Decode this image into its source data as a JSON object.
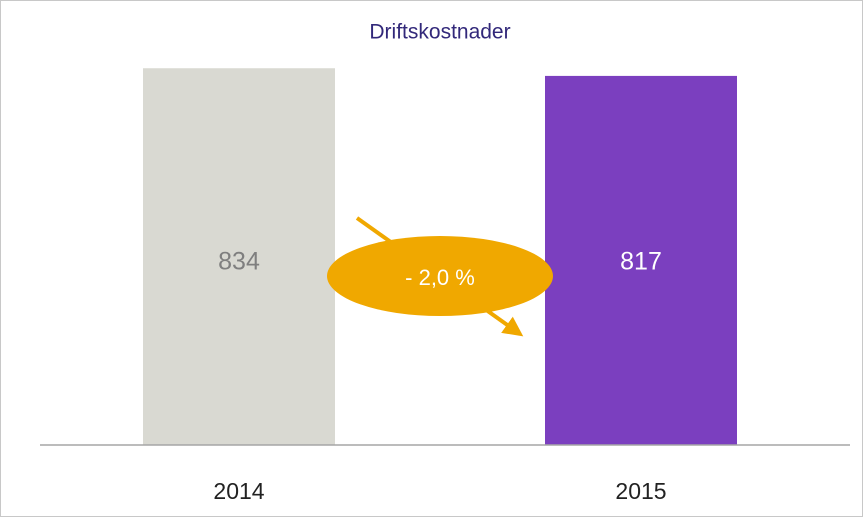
{
  "chart_data": {
    "type": "bar",
    "title": "Driftskostnader",
    "categories": [
      "2014",
      "2015"
    ],
    "values": [
      834,
      817
    ],
    "colors": [
      "#d9d9d2",
      "#7b3fbf"
    ],
    "annotation": "- 2,0 %",
    "ylim": [
      0,
      850
    ]
  }
}
